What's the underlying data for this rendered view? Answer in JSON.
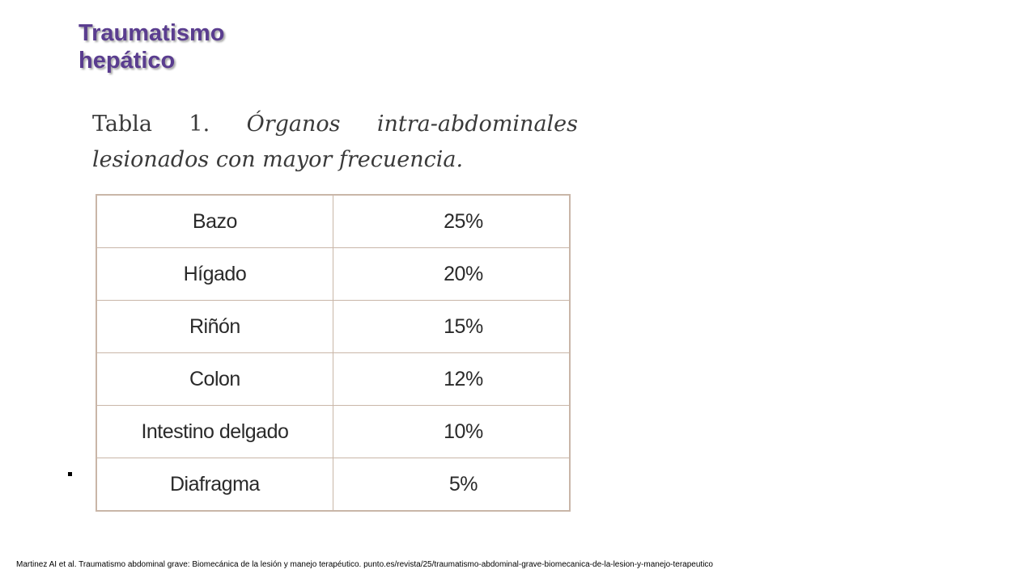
{
  "slide": {
    "title_line1": "Traumatismo",
    "title_line2": "hepático",
    "caption_lead": "Tabla 1. ",
    "caption_rest": "Órganos intra-abdominales lesionados con mayor frecuencia.",
    "bullet": "▪",
    "citation": "Martinez AI et al. Traumatismo abdominal grave: Biomecánica de la lesión y manejo terapéutico. punto.es/revista/25/traumatismo-abdominal-grave-biomecanica-de-la-lesion-y-manejo-terapeutico"
  },
  "table": {
    "rows": [
      {
        "organ": "Bazo",
        "percent": "25%"
      },
      {
        "organ": "Hígado",
        "percent": "20%"
      },
      {
        "organ": "Riñón",
        "percent": "15%"
      },
      {
        "organ": "Colon",
        "percent": "12%"
      },
      {
        "organ": "Intestino delgado",
        "percent": "10%"
      },
      {
        "organ": "Diafragma",
        "percent": "5%"
      }
    ]
  },
  "colors": {
    "title": "#5a3d8f",
    "table_border": "#c9b6a8"
  }
}
